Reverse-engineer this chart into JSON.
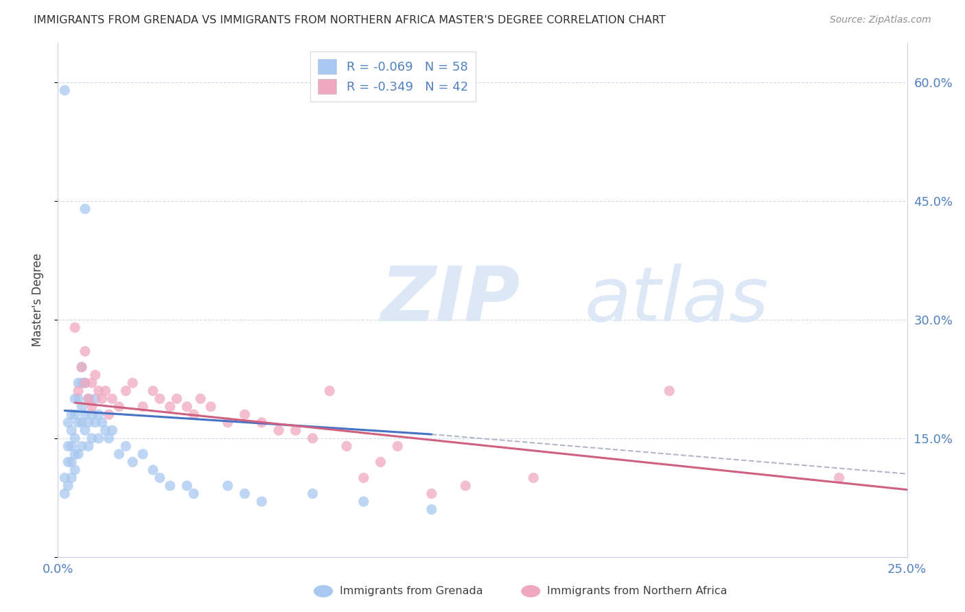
{
  "title": "IMMIGRANTS FROM GRENADA VS IMMIGRANTS FROM NORTHERN AFRICA MASTER'S DEGREE CORRELATION CHART",
  "source": "Source: ZipAtlas.com",
  "ylabel": "Master's Degree",
  "xlim": [
    0.0,
    0.25
  ],
  "ylim": [
    0.0,
    0.65
  ],
  "yticks": [
    0.0,
    0.15,
    0.3,
    0.45,
    0.6
  ],
  "xticks": [
    0.0,
    0.05,
    0.1,
    0.15,
    0.2,
    0.25
  ],
  "xtick_labels": [
    "0.0%",
    "",
    "",
    "",
    "",
    "25.0%"
  ],
  "ytick_labels_right": [
    "",
    "15.0%",
    "30.0%",
    "45.0%",
    "60.0%"
  ],
  "series1_color": "#a8c8f0",
  "series2_color": "#f0a8c0",
  "trend1_color": "#4472c4",
  "trend2_color": "#d06080",
  "dash_color": "#b0b8c8",
  "background_color": "#ffffff",
  "watermark_zip": "ZIP",
  "watermark_atlas": "atlas",
  "watermark_color": "#dce8f5",
  "title_color": "#303030",
  "axis_label_color": "#5080c0",
  "grid_color": "#d0d8e8",
  "legend_label1": "R = -0.069   N = 58",
  "legend_label2": "R = -0.349   N = 42",
  "legend_label1_R": "R = -0.069",
  "legend_label1_N": "N = 58",
  "legend_label2_R": "R = -0.349",
  "legend_label2_N": "N = 42",
  "bottom_label1": "Immigrants from Grenada",
  "bottom_label2": "Immigrants from Northern Africa",
  "series1_x": [
    0.002,
    0.002,
    0.002,
    0.003,
    0.003,
    0.003,
    0.003,
    0.004,
    0.004,
    0.004,
    0.004,
    0.004,
    0.005,
    0.005,
    0.005,
    0.005,
    0.005,
    0.006,
    0.006,
    0.006,
    0.006,
    0.007,
    0.007,
    0.007,
    0.007,
    0.007,
    0.008,
    0.008,
    0.008,
    0.008,
    0.009,
    0.009,
    0.009,
    0.01,
    0.01,
    0.011,
    0.011,
    0.012,
    0.012,
    0.013,
    0.014,
    0.015,
    0.016,
    0.018,
    0.02,
    0.022,
    0.025,
    0.028,
    0.03,
    0.033,
    0.038,
    0.04,
    0.05,
    0.055,
    0.06,
    0.075,
    0.09,
    0.11
  ],
  "series1_y": [
    0.59,
    0.1,
    0.08,
    0.17,
    0.14,
    0.12,
    0.09,
    0.18,
    0.16,
    0.14,
    0.12,
    0.1,
    0.2,
    0.18,
    0.15,
    0.13,
    0.11,
    0.22,
    0.2,
    0.17,
    0.13,
    0.24,
    0.22,
    0.19,
    0.17,
    0.14,
    0.44,
    0.22,
    0.18,
    0.16,
    0.2,
    0.17,
    0.14,
    0.18,
    0.15,
    0.2,
    0.17,
    0.18,
    0.15,
    0.17,
    0.16,
    0.15,
    0.16,
    0.13,
    0.14,
    0.12,
    0.13,
    0.11,
    0.1,
    0.09,
    0.09,
    0.08,
    0.09,
    0.08,
    0.07,
    0.08,
    0.07,
    0.06
  ],
  "series2_x": [
    0.005,
    0.006,
    0.007,
    0.008,
    0.008,
    0.009,
    0.01,
    0.01,
    0.011,
    0.012,
    0.013,
    0.014,
    0.015,
    0.016,
    0.018,
    0.02,
    0.022,
    0.025,
    0.028,
    0.03,
    0.033,
    0.035,
    0.038,
    0.04,
    0.042,
    0.045,
    0.05,
    0.055,
    0.06,
    0.065,
    0.07,
    0.075,
    0.08,
    0.085,
    0.09,
    0.095,
    0.1,
    0.11,
    0.12,
    0.14,
    0.18,
    0.23
  ],
  "series2_y": [
    0.29,
    0.21,
    0.24,
    0.26,
    0.22,
    0.2,
    0.22,
    0.19,
    0.23,
    0.21,
    0.2,
    0.21,
    0.18,
    0.2,
    0.19,
    0.21,
    0.22,
    0.19,
    0.21,
    0.2,
    0.19,
    0.2,
    0.19,
    0.18,
    0.2,
    0.19,
    0.17,
    0.18,
    0.17,
    0.16,
    0.16,
    0.15,
    0.21,
    0.14,
    0.1,
    0.12,
    0.14,
    0.08,
    0.09,
    0.1,
    0.21,
    0.1
  ],
  "trend1_x_start": 0.002,
  "trend1_x_solid_end": 0.11,
  "trend1_x_dash_end": 0.25,
  "trend1_y_start": 0.185,
  "trend1_y_solid_end": 0.155,
  "trend1_y_dash_end": 0.105,
  "trend2_x_start": 0.005,
  "trend2_x_end": 0.25,
  "trend2_y_start": 0.195,
  "trend2_y_end": 0.085
}
